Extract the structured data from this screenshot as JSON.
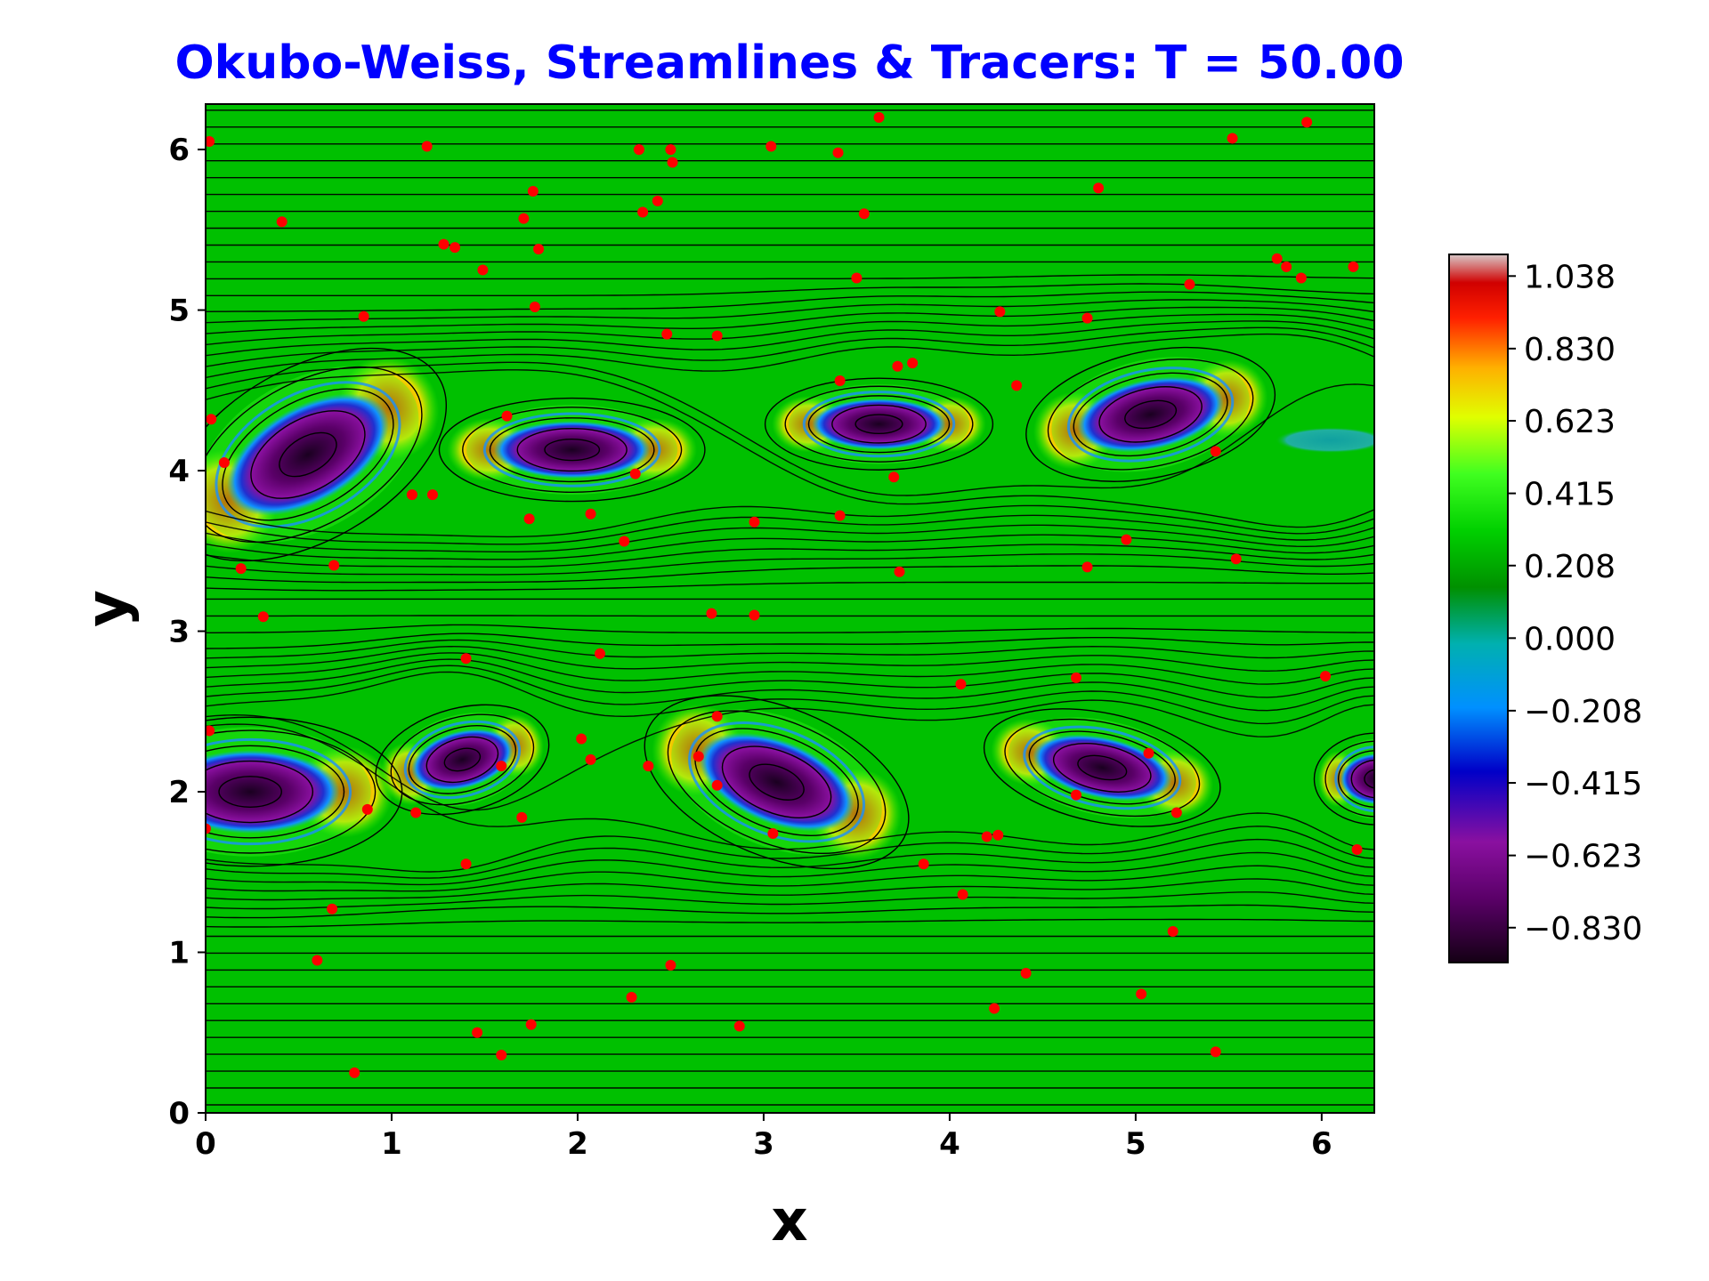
{
  "chart_data": {
    "type": "heatmap",
    "title": "Okubo-Weiss, Streamlines & Tracers: T = 50.00",
    "xlabel": "x",
    "ylabel": "y",
    "xlim": [
      0,
      6.283
    ],
    "ylim": [
      0,
      6.283
    ],
    "xticks": [
      "0",
      "1",
      "2",
      "3",
      "4",
      "5",
      "6"
    ],
    "yticks": [
      "0",
      "1",
      "2",
      "3",
      "4",
      "5",
      "6"
    ],
    "background_value": 0.12,
    "colorbar": {
      "ticks": [
        "1.038",
        "0.830",
        "0.623",
        "0.415",
        "0.208",
        "0.000",
        "−0.208",
        "−0.415",
        "−0.623",
        "−0.830"
      ],
      "tick_values": [
        1.038,
        0.83,
        0.623,
        0.415,
        0.208,
        0.0,
        -0.208,
        -0.415,
        -0.623,
        -0.83
      ],
      "range": [
        -0.93,
        1.1
      ]
    },
    "vortices": [
      {
        "x": 0.55,
        "y": 4.1,
        "rx": 0.48,
        "ry": 0.3,
        "tilt": -30,
        "min": -0.93
      },
      {
        "x": 1.97,
        "y": 4.13,
        "rx": 0.42,
        "ry": 0.18,
        "tilt": 0,
        "min": -0.87
      },
      {
        "x": 3.62,
        "y": 4.29,
        "rx": 0.36,
        "ry": 0.16,
        "tilt": 0,
        "min": -0.85
      },
      {
        "x": 5.08,
        "y": 4.35,
        "rx": 0.4,
        "ry": 0.22,
        "tilt": -12,
        "min": -0.9
      },
      {
        "x": 6.05,
        "y": 4.19,
        "rx": 0.3,
        "ry": 0.08,
        "tilt": 0,
        "min": -0.2
      },
      {
        "x": 0.24,
        "y": 2.0,
        "rx": 0.48,
        "ry": 0.26,
        "tilt": 0,
        "min": -0.87
      },
      {
        "x": 1.38,
        "y": 2.2,
        "rx": 0.28,
        "ry": 0.18,
        "tilt": -15,
        "min": -0.82
      },
      {
        "x": 3.07,
        "y": 2.06,
        "rx": 0.44,
        "ry": 0.26,
        "tilt": 22,
        "min": -0.9
      },
      {
        "x": 4.82,
        "y": 2.15,
        "rx": 0.38,
        "ry": 0.19,
        "tilt": 12,
        "min": -0.85
      },
      {
        "x": 6.3,
        "y": 2.08,
        "rx": 0.2,
        "ry": 0.16,
        "tilt": 0,
        "min": -0.83
      }
    ],
    "tracers": [
      {
        "x": 0.02,
        "y": 6.05
      },
      {
        "x": 1.19,
        "y": 6.02
      },
      {
        "x": 2.33,
        "y": 6.0
      },
      {
        "x": 2.5,
        "y": 6.0
      },
      {
        "x": 2.51,
        "y": 5.92
      },
      {
        "x": 3.04,
        "y": 6.02
      },
      {
        "x": 3.4,
        "y": 5.98
      },
      {
        "x": 3.62,
        "y": 6.2
      },
      {
        "x": 5.52,
        "y": 6.07
      },
      {
        "x": 5.92,
        "y": 6.17
      },
      {
        "x": 0.41,
        "y": 5.55
      },
      {
        "x": 1.76,
        "y": 5.74
      },
      {
        "x": 2.43,
        "y": 5.68
      },
      {
        "x": 2.35,
        "y": 5.61
      },
      {
        "x": 1.71,
        "y": 5.57
      },
      {
        "x": 3.54,
        "y": 5.6
      },
      {
        "x": 4.8,
        "y": 5.76
      },
      {
        "x": 1.28,
        "y": 5.41
      },
      {
        "x": 1.34,
        "y": 5.39
      },
      {
        "x": 1.79,
        "y": 5.38
      },
      {
        "x": 1.49,
        "y": 5.25
      },
      {
        "x": 3.5,
        "y": 5.2
      },
      {
        "x": 5.29,
        "y": 5.16
      },
      {
        "x": 5.76,
        "y": 5.32
      },
      {
        "x": 5.81,
        "y": 5.27
      },
      {
        "x": 5.89,
        "y": 5.2
      },
      {
        "x": 6.17,
        "y": 5.27
      },
      {
        "x": 0.85,
        "y": 4.96
      },
      {
        "x": 1.77,
        "y": 5.02
      },
      {
        "x": 2.48,
        "y": 4.85
      },
      {
        "x": 2.75,
        "y": 4.84
      },
      {
        "x": 4.27,
        "y": 4.99
      },
      {
        "x": 4.74,
        "y": 4.95
      },
      {
        "x": 3.72,
        "y": 4.65
      },
      {
        "x": 3.8,
        "y": 4.67
      },
      {
        "x": 3.41,
        "y": 4.56
      },
      {
        "x": 4.36,
        "y": 4.53
      },
      {
        "x": 0.03,
        "y": 4.32
      },
      {
        "x": 1.62,
        "y": 4.34
      },
      {
        "x": 5.43,
        "y": 4.12
      },
      {
        "x": 0.1,
        "y": 4.05
      },
      {
        "x": 2.31,
        "y": 3.98
      },
      {
        "x": 3.7,
        "y": 3.96
      },
      {
        "x": 1.11,
        "y": 3.85
      },
      {
        "x": 1.22,
        "y": 3.85
      },
      {
        "x": 1.74,
        "y": 3.7
      },
      {
        "x": 2.07,
        "y": 3.73
      },
      {
        "x": 2.95,
        "y": 3.68
      },
      {
        "x": 3.41,
        "y": 3.72
      },
      {
        "x": 2.25,
        "y": 3.56
      },
      {
        "x": 4.95,
        "y": 3.57
      },
      {
        "x": 5.54,
        "y": 3.45
      },
      {
        "x": 0.19,
        "y": 3.39
      },
      {
        "x": 0.69,
        "y": 3.41
      },
      {
        "x": 3.73,
        "y": 3.37
      },
      {
        "x": 4.74,
        "y": 3.4
      },
      {
        "x": 0.31,
        "y": 3.09
      },
      {
        "x": 2.72,
        "y": 3.11
      },
      {
        "x": 2.95,
        "y": 3.1
      },
      {
        "x": 2.12,
        "y": 2.86
      },
      {
        "x": 1.4,
        "y": 2.83
      },
      {
        "x": 4.68,
        "y": 2.71
      },
      {
        "x": 6.02,
        "y": 2.72
      },
      {
        "x": 4.06,
        "y": 2.67
      },
      {
        "x": 2.75,
        "y": 2.47
      },
      {
        "x": 0.02,
        "y": 2.38
      },
      {
        "x": 2.02,
        "y": 2.33
      },
      {
        "x": 2.07,
        "y": 2.2
      },
      {
        "x": 2.65,
        "y": 2.22
      },
      {
        "x": 2.38,
        "y": 2.16
      },
      {
        "x": 1.59,
        "y": 2.16
      },
      {
        "x": 5.07,
        "y": 2.24
      },
      {
        "x": 2.75,
        "y": 2.04
      },
      {
        "x": 4.68,
        "y": 1.98
      },
      {
        "x": 0.87,
        "y": 1.89
      },
      {
        "x": 1.13,
        "y": 1.87
      },
      {
        "x": 1.7,
        "y": 1.84
      },
      {
        "x": 5.22,
        "y": 1.87
      },
      {
        "x": 0.0,
        "y": 1.77
      },
      {
        "x": 3.05,
        "y": 1.74
      },
      {
        "x": 4.2,
        "y": 1.72
      },
      {
        "x": 4.26,
        "y": 1.73
      },
      {
        "x": 6.19,
        "y": 1.64
      },
      {
        "x": 1.4,
        "y": 1.55
      },
      {
        "x": 3.86,
        "y": 1.55
      },
      {
        "x": 4.07,
        "y": 1.36
      },
      {
        "x": 0.68,
        "y": 1.27
      },
      {
        "x": 5.2,
        "y": 1.13
      },
      {
        "x": 0.6,
        "y": 0.95
      },
      {
        "x": 2.5,
        "y": 0.92
      },
      {
        "x": 4.41,
        "y": 0.87
      },
      {
        "x": 5.03,
        "y": 0.74
      },
      {
        "x": 2.29,
        "y": 0.72
      },
      {
        "x": 4.24,
        "y": 0.65
      },
      {
        "x": 1.75,
        "y": 0.55
      },
      {
        "x": 2.87,
        "y": 0.54
      },
      {
        "x": 1.46,
        "y": 0.5
      },
      {
        "x": 1.59,
        "y": 0.36
      },
      {
        "x": 5.43,
        "y": 0.38
      },
      {
        "x": 0.8,
        "y": 0.25
      }
    ],
    "colors": {
      "title": "#0000ff",
      "tracer": "#ff0000",
      "streamline": "#000000",
      "background": "#00c000"
    }
  }
}
